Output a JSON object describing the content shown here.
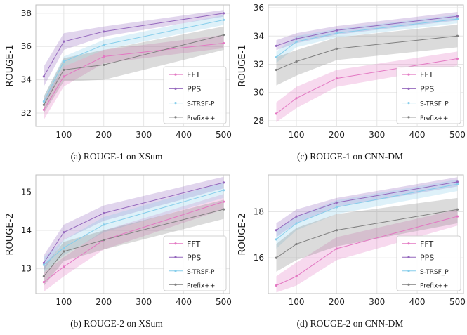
{
  "chart_data": [
    {
      "type": "line",
      "ylabel": "ROUGE-1",
      "caption": "(a) ROUGE-1 on XSum",
      "x": [
        50,
        100,
        200,
        500
      ],
      "xticks": [
        100,
        200,
        300,
        400,
        500
      ],
      "yticks": [
        32,
        34,
        36,
        38
      ],
      "xlim": [
        30,
        515
      ],
      "ylim": [
        31.2,
        38.5
      ],
      "grid": true,
      "legend_position": "bottom-right",
      "series": [
        {
          "name": "FFT",
          "color": "#e377c2",
          "values": [
            32.2,
            34.2,
            35.4,
            36.2
          ],
          "lower": [
            31.6,
            33.6,
            35.0,
            35.9
          ],
          "upper": [
            32.8,
            34.8,
            35.8,
            36.7
          ]
        },
        {
          "name": "PPS",
          "color": "#9467bd",
          "values": [
            34.2,
            36.3,
            36.9,
            38.0
          ],
          "lower": [
            33.6,
            35.8,
            36.6,
            37.8
          ],
          "upper": [
            34.8,
            36.8,
            37.2,
            38.2
          ]
        },
        {
          "name": "S-TRSF-P",
          "color": "#87ceeb",
          "values": [
            32.7,
            35.1,
            36.1,
            37.6
          ],
          "lower": [
            32.4,
            34.8,
            35.8,
            37.3
          ],
          "upper": [
            33.0,
            35.4,
            36.4,
            37.9
          ]
        },
        {
          "name": "Prefix++",
          "color": "#7f7f7f",
          "values": [
            32.5,
            34.6,
            34.9,
            36.7
          ],
          "lower": [
            32.0,
            33.9,
            34.0,
            35.8
          ],
          "upper": [
            33.0,
            35.3,
            35.8,
            37.2
          ]
        }
      ]
    },
    {
      "type": "line",
      "ylabel": "ROUGE-1",
      "caption": "(c) ROUGE-1 on CNN-DM",
      "x": [
        50,
        100,
        200,
        500
      ],
      "xticks": [
        100,
        200,
        300,
        400,
        500
      ],
      "yticks": [
        28,
        30,
        32,
        34,
        36
      ],
      "xlim": [
        30,
        515
      ],
      "ylim": [
        27.6,
        36.2
      ],
      "grid": true,
      "legend_position": "bottom-right",
      "series": [
        {
          "name": "FFT",
          "color": "#e377c2",
          "values": [
            28.5,
            29.6,
            31.0,
            32.4
          ],
          "lower": [
            27.9,
            28.9,
            30.4,
            31.9
          ],
          "upper": [
            29.3,
            30.4,
            31.6,
            32.9
          ]
        },
        {
          "name": "PPS",
          "color": "#9467bd",
          "values": [
            33.3,
            33.8,
            34.4,
            35.4
          ],
          "lower": [
            33.0,
            33.5,
            34.1,
            35.1
          ],
          "upper": [
            33.7,
            34.2,
            34.7,
            35.7
          ]
        },
        {
          "name": "S-TRSF_P",
          "color": "#87ceeb",
          "values": [
            32.5,
            33.6,
            34.2,
            35.2
          ],
          "lower": [
            32.1,
            33.2,
            33.9,
            34.9
          ],
          "upper": [
            32.9,
            34.0,
            34.5,
            35.5
          ]
        },
        {
          "name": "Prefix++",
          "color": "#7f7f7f",
          "values": [
            31.6,
            32.2,
            33.1,
            34.0
          ],
          "lower": [
            30.5,
            31.2,
            32.3,
            33.2
          ],
          "upper": [
            32.5,
            33.0,
            33.9,
            34.8
          ]
        }
      ]
    },
    {
      "type": "line",
      "ylabel": "ROUGE-2",
      "caption": "(b) ROUGE-2 on XSum",
      "x": [
        50,
        100,
        200,
        500
      ],
      "xticks": [
        100,
        200,
        300,
        400,
        500
      ],
      "yticks": [
        13,
        14,
        15
      ],
      "xlim": [
        30,
        515
      ],
      "ylim": [
        12.35,
        15.45
      ],
      "grid": true,
      "legend_position": "bottom-right",
      "series": [
        {
          "name": "FFT",
          "color": "#e377c2",
          "values": [
            12.65,
            13.05,
            13.75,
            14.75
          ],
          "lower": [
            12.4,
            12.8,
            13.5,
            14.55
          ],
          "upper": [
            12.9,
            13.3,
            14.0,
            14.95
          ]
        },
        {
          "name": "PPS",
          "color": "#9467bd",
          "values": [
            13.15,
            13.95,
            14.45,
            15.25
          ],
          "lower": [
            12.95,
            13.75,
            14.25,
            15.1
          ],
          "upper": [
            13.35,
            14.15,
            14.65,
            15.4
          ]
        },
        {
          "name": "S-TRSF-P",
          "color": "#87ceeb",
          "values": [
            13.1,
            13.55,
            14.15,
            15.05
          ],
          "lower": [
            12.9,
            13.35,
            13.95,
            14.85
          ],
          "upper": [
            13.3,
            13.75,
            14.35,
            15.25
          ]
        },
        {
          "name": "Prefix++",
          "color": "#7f7f7f",
          "values": [
            12.8,
            13.45,
            13.75,
            14.55
          ],
          "lower": [
            12.55,
            13.2,
            13.5,
            14.3
          ],
          "upper": [
            13.05,
            13.7,
            14.0,
            14.8
          ]
        }
      ]
    },
    {
      "type": "line",
      "ylabel": "ROUGE-2",
      "caption": "(d) ROUGE-2 on CNN-DM",
      "x": [
        50,
        100,
        200,
        500
      ],
      "xticks": [
        100,
        200,
        300,
        400,
        500
      ],
      "yticks": [
        16,
        18
      ],
      "xlim": [
        30,
        515
      ],
      "ylim": [
        14.45,
        19.6
      ],
      "grid": true,
      "legend_position": "bottom-right",
      "series": [
        {
          "name": "FFT",
          "color": "#e377c2",
          "values": [
            14.8,
            15.2,
            16.4,
            17.8
          ],
          "lower": [
            14.5,
            14.8,
            15.9,
            17.4
          ],
          "upper": [
            15.2,
            15.8,
            16.9,
            18.1
          ]
        },
        {
          "name": "PPS",
          "color": "#9467bd",
          "values": [
            17.2,
            17.8,
            18.4,
            19.3
          ],
          "lower": [
            16.9,
            17.5,
            18.2,
            19.1
          ],
          "upper": [
            17.5,
            18.1,
            18.6,
            19.5
          ]
        },
        {
          "name": "S-TRSF_P",
          "color": "#87ceeb",
          "values": [
            16.8,
            17.5,
            18.2,
            19.2
          ],
          "lower": [
            16.4,
            17.2,
            17.9,
            18.9
          ],
          "upper": [
            17.2,
            17.8,
            18.5,
            19.4
          ]
        },
        {
          "name": "Prefix++",
          "color": "#7f7f7f",
          "values": [
            16.0,
            16.6,
            17.2,
            18.1
          ],
          "lower": [
            15.4,
            15.9,
            16.5,
            17.5
          ],
          "upper": [
            16.6,
            17.3,
            17.9,
            18.6
          ]
        }
      ]
    }
  ]
}
